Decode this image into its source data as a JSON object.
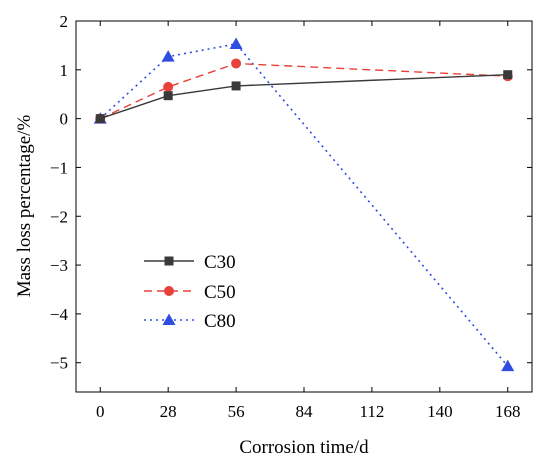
{
  "chart_data": {
    "type": "line",
    "title": "",
    "xlabel": "Corrosion time/d",
    "ylabel": "Mass loss percentage/%",
    "xlim": [
      -10,
      178
    ],
    "ylim": [
      -5.6,
      2
    ],
    "xticks": [
      0,
      28,
      56,
      84,
      112,
      140,
      168
    ],
    "yticks": [
      2,
      1,
      0,
      -1,
      -2,
      -3,
      -4,
      -5
    ],
    "ytick_labels": [
      "2",
      "1",
      "0",
      "−1",
      "−2",
      "−3",
      "−4",
      "−5"
    ],
    "grid": false,
    "legend_position": "lower-left",
    "series": [
      {
        "name": "C30",
        "color": "#3a3a3a",
        "line_style": "solid",
        "marker": "square",
        "x": [
          0,
          28,
          56,
          168
        ],
        "y": [
          0,
          0.47,
          0.67,
          0.9
        ]
      },
      {
        "name": "C50",
        "color": "#e8413a",
        "line_style": "dashed",
        "marker": "circle",
        "x": [
          0,
          28,
          56,
          168
        ],
        "y": [
          0,
          0.65,
          1.13,
          0.87
        ]
      },
      {
        "name": "C80",
        "color": "#2f4de0",
        "line_style": "dotted",
        "marker": "triangle",
        "x": [
          0,
          28,
          56,
          168
        ],
        "y": [
          0,
          1.27,
          1.53,
          -5.07
        ]
      }
    ]
  }
}
